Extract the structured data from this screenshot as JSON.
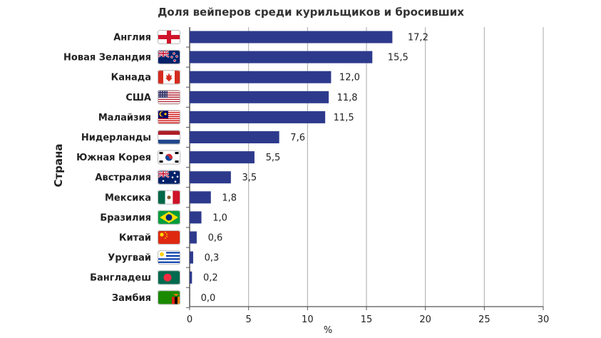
{
  "chart_data": {
    "type": "bar",
    "orientation": "horizontal",
    "title": "Доля вейперов среди курильщиков и бросивших",
    "ylabel": "Страна",
    "xlabel": "%",
    "xlim": [
      0,
      30
    ],
    "xticks": [
      0,
      5,
      10,
      15,
      20,
      25,
      30
    ],
    "grid": "vertical",
    "bar_color": "#2d3a8c",
    "categories": [
      "Англия",
      "Новая Зеландия",
      "Канада",
      "США",
      "Малайзия",
      "Нидерланды",
      "Южная Корея",
      "Австралия",
      "Мексика",
      "Бразилия",
      "Китай",
      "Уругвай",
      "Бангладеш",
      "Замбия"
    ],
    "values": [
      17.2,
      15.5,
      12.0,
      11.8,
      11.5,
      7.6,
      5.5,
      3.5,
      1.8,
      1.0,
      0.6,
      0.3,
      0.2,
      0.0
    ],
    "value_labels": [
      "17,2",
      "15,5",
      "12,0",
      "11,8",
      "11,5",
      "7,6",
      "5,5",
      "3,5",
      "1,8",
      "1,0",
      "0,6",
      "0,3",
      "0,2",
      "0,0"
    ],
    "flag_icons": [
      "england-flag-icon",
      "new-zealand-flag-icon",
      "canada-flag-icon",
      "usa-flag-icon",
      "malaysia-flag-icon",
      "netherlands-flag-icon",
      "south-korea-flag-icon",
      "australia-flag-icon",
      "mexico-flag-icon",
      "brazil-flag-icon",
      "china-flag-icon",
      "uruguay-flag-icon",
      "bangladesh-flag-icon",
      "zambia-flag-icon"
    ]
  }
}
